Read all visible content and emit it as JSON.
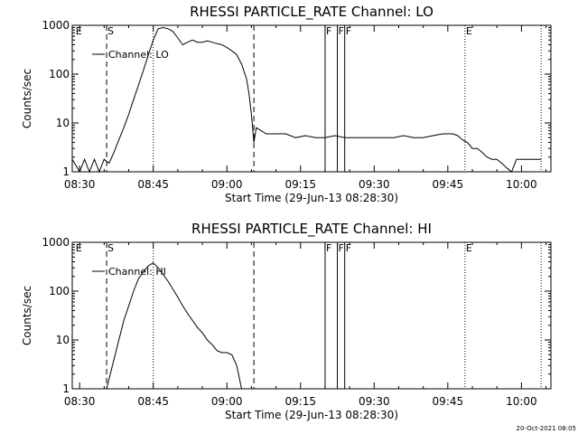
{
  "chart_data": [
    {
      "type": "line",
      "title": "RHESSI PARTICLE_RATE Channel: LO",
      "xlabel": "Start Time (29-Jun-13 08:28:30)",
      "ylabel": "Counts/sec",
      "yscale": "log",
      "ylim": [
        1,
        1000
      ],
      "xlim": [
        "08:28:30",
        "10:06:00"
      ],
      "x_ticks": [
        "08:30",
        "08:45",
        "09:00",
        "09:15",
        "09:30",
        "09:45",
        "10:00"
      ],
      "y_ticks": [
        "1",
        "10",
        "100",
        "1000"
      ],
      "legend": "Channel: LO",
      "legend_position": "top-left",
      "flags": [
        {
          "label": "E",
          "time": "08:29:00"
        },
        {
          "label": "S",
          "time": "08:35:30"
        },
        {
          "label": "F",
          "time": "09:20:00"
        },
        {
          "label": "F",
          "time": "09:22:30"
        },
        {
          "label": "F",
          "time": "09:24:00"
        },
        {
          "label": "E",
          "time": "09:48:30"
        }
      ],
      "vlines": [
        {
          "time": "08:35:30",
          "style": "dashed"
        },
        {
          "time": "08:45:00",
          "style": "dotted"
        },
        {
          "time": "09:05:30",
          "style": "dashed"
        },
        {
          "time": "09:20:00",
          "style": "solid"
        },
        {
          "time": "09:22:30",
          "style": "solid"
        },
        {
          "time": "09:24:00",
          "style": "solid"
        },
        {
          "time": "09:48:30",
          "style": "dotted"
        },
        {
          "time": "10:04:00",
          "style": "dotted"
        }
      ],
      "series": [
        {
          "name": "Channel: LO",
          "x": [
            "08:28:30",
            "08:30:00",
            "08:31:00",
            "08:32:00",
            "08:33:00",
            "08:34:00",
            "08:35:00",
            "08:36:00",
            "08:37:00",
            "08:38:00",
            "08:39:00",
            "08:40:00",
            "08:41:00",
            "08:42:00",
            "08:43:00",
            "08:44:00",
            "08:45:00",
            "08:46:00",
            "08:47:00",
            "08:48:00",
            "08:49:00",
            "08:50:00",
            "08:51:00",
            "08:52:00",
            "08:53:00",
            "08:54:00",
            "08:55:00",
            "08:56:00",
            "08:57:00",
            "08:58:00",
            "08:59:00",
            "09:00:00",
            "09:01:00",
            "09:02:00",
            "09:03:00",
            "09:04:00",
            "09:04:30",
            "09:05:00",
            "09:05:30",
            "09:06:00",
            "09:08:00",
            "09:10:00",
            "09:12:00",
            "09:14:00",
            "09:16:00",
            "09:18:00",
            "09:20:00",
            "09:22:00",
            "09:24:00",
            "09:26:00",
            "09:28:00",
            "09:30:00",
            "09:32:00",
            "09:34:00",
            "09:36:00",
            "09:38:00",
            "09:40:00",
            "09:42:00",
            "09:44:00",
            "09:46:00",
            "09:47:00",
            "09:48:00",
            "09:49:00",
            "09:50:00",
            "09:51:00",
            "09:52:00",
            "09:53:00",
            "09:54:00",
            "09:55:00",
            "09:56:00",
            "09:57:00",
            "09:58:00",
            "09:59:00",
            "10:00:00",
            "10:02:00",
            "10:04:00"
          ],
          "y": [
            1.8,
            1,
            1.8,
            1,
            1.8,
            1,
            1.8,
            1.5,
            2.5,
            4.5,
            8,
            15,
            30,
            60,
            120,
            250,
            500,
            850,
            900,
            850,
            750,
            550,
            400,
            450,
            500,
            450,
            450,
            480,
            450,
            420,
            400,
            350,
            300,
            250,
            160,
            80,
            40,
            15,
            4,
            8,
            6,
            6,
            6,
            5,
            5.5,
            5,
            5,
            5.5,
            5,
            5,
            5,
            5,
            5,
            5,
            5.5,
            5,
            5,
            5.5,
            6,
            6,
            5.5,
            4.5,
            4,
            3,
            3,
            2.5,
            2,
            1.8,
            1.8,
            1.5,
            1.2,
            1,
            1.8,
            1.8,
            1.8,
            1.8
          ]
        }
      ]
    },
    {
      "type": "line",
      "title": "RHESSI PARTICLE_RATE Channel: HI",
      "xlabel": "Start Time (29-Jun-13 08:28:30)",
      "ylabel": "Counts/sec",
      "yscale": "log",
      "ylim": [
        1,
        1000
      ],
      "xlim": [
        "08:28:30",
        "10:06:00"
      ],
      "x_ticks": [
        "08:30",
        "08:45",
        "09:00",
        "09:15",
        "09:30",
        "09:45",
        "10:00"
      ],
      "y_ticks": [
        "1",
        "10",
        "100",
        "1000"
      ],
      "legend": "Channel: HI",
      "legend_position": "top-left",
      "flags": [
        {
          "label": "E",
          "time": "08:29:00"
        },
        {
          "label": "S",
          "time": "08:35:30"
        },
        {
          "label": "F",
          "time": "09:20:00"
        },
        {
          "label": "F",
          "time": "09:22:30"
        },
        {
          "label": "F",
          "time": "09:24:00"
        },
        {
          "label": "E",
          "time": "09:48:30"
        }
      ],
      "vlines": [
        {
          "time": "08:35:30",
          "style": "dashed"
        },
        {
          "time": "08:45:00",
          "style": "dotted"
        },
        {
          "time": "09:05:30",
          "style": "dashed"
        },
        {
          "time": "09:20:00",
          "style": "solid"
        },
        {
          "time": "09:22:30",
          "style": "solid"
        },
        {
          "time": "09:24:00",
          "style": "solid"
        },
        {
          "time": "09:48:30",
          "style": "dotted"
        },
        {
          "time": "10:04:00",
          "style": "dotted"
        }
      ],
      "series": [
        {
          "name": "Channel: HI",
          "x": [
            "08:35:30",
            "08:36:00",
            "08:37:00",
            "08:38:00",
            "08:39:00",
            "08:40:00",
            "08:41:00",
            "08:42:00",
            "08:43:00",
            "08:44:00",
            "08:45:00",
            "08:46:00",
            "08:47:00",
            "08:48:00",
            "08:49:00",
            "08:50:00",
            "08:51:00",
            "08:52:00",
            "08:53:00",
            "08:54:00",
            "08:55:00",
            "08:56:00",
            "08:57:00",
            "08:58:00",
            "08:59:00",
            "09:00:00",
            "09:01:00",
            "09:02:00",
            "09:03:00"
          ],
          "y": [
            1,
            1.6,
            4,
            10,
            25,
            50,
            100,
            180,
            250,
            330,
            380,
            300,
            220,
            160,
            110,
            75,
            50,
            35,
            25,
            18,
            14,
            10,
            8,
            6,
            5.5,
            5.5,
            5,
            3,
            1
          ]
        }
      ]
    }
  ],
  "footer": {
    "timestamp": "20-Oct-2021 08:05"
  }
}
